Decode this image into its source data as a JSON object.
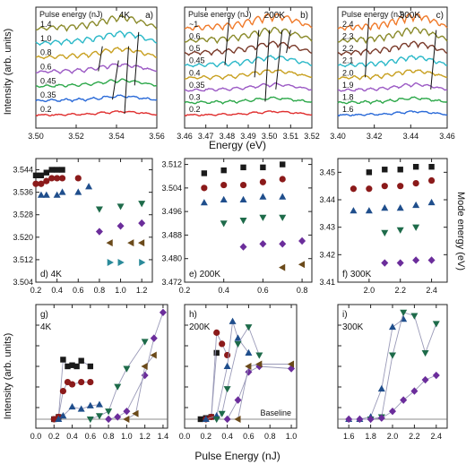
{
  "figure": {
    "row1_xlabel": "Energy (eV)",
    "row1_ylabel": "Intensity (arb. units)",
    "row2_ylabel": "Mode energy (eV)",
    "row3_xlabel": "Pulse Energy (nJ)",
    "row3_ylabel": "Intensity (arb. units)"
  },
  "chart_data": [
    {
      "id": "a",
      "type": "line",
      "tag": "4K",
      "letter": "a)",
      "legend_title": "Pulse energy (nJ)",
      "xlim": [
        3.5,
        3.56
      ],
      "xticks": [
        3.5,
        3.52,
        3.54,
        3.56
      ],
      "xticklabels": [
        "3.50",
        "3.52",
        "3.54",
        "3.56"
      ],
      "series": [
        {
          "name": "0.2",
          "color": "#e03030"
        },
        {
          "name": "0.35",
          "color": "#2a6ad8"
        },
        {
          "name": "0.45",
          "color": "#2da84a"
        },
        {
          "name": "0.6",
          "color": "#9b59c4"
        },
        {
          "name": "0.8",
          "color": "#c8a020"
        },
        {
          "name": "1.0",
          "color": "#2ab8c8"
        },
        {
          "name": "1.4",
          "color": "#8a8a2a"
        }
      ],
      "peak_lines": [
        [
          [
            3.544,
            0
          ],
          [
            3.546,
            4
          ]
        ],
        [
          [
            3.538,
            1
          ],
          [
            3.541,
            3
          ]
        ],
        [
          [
            3.531,
            3
          ],
          [
            3.533,
            4
          ]
        ],
        [
          [
            3.549,
            2
          ],
          [
            3.551,
            5
          ]
        ]
      ]
    },
    {
      "id": "b",
      "type": "line",
      "tag": "200K",
      "letter": "b)",
      "legend_title": "Pulse energy (nJ)",
      "xlim": [
        3.46,
        3.52
      ],
      "xticks": [
        3.46,
        3.47,
        3.48,
        3.49,
        3.5,
        3.51,
        3.52
      ],
      "xticklabels": [
        "3.46",
        "3.47",
        "3.48",
        "3.49",
        "3.50",
        "3.51",
        "3.52"
      ],
      "series": [
        {
          "name": "0.2",
          "color": "#e03030"
        },
        {
          "name": "0.3",
          "color": "#2da84a"
        },
        {
          "name": "0.35",
          "color": "#9b59c4"
        },
        {
          "name": "0.4",
          "color": "#c8a020"
        },
        {
          "name": "0.45",
          "color": "#2ab8c8"
        },
        {
          "name": "0.5",
          "color": "#7a3a2a"
        },
        {
          "name": "0.6",
          "color": "#8a8a2a"
        },
        {
          "name": "~1",
          "color": "#f07a2a"
        }
      ],
      "peak_lines": [
        [
          [
            3.479,
            4
          ],
          [
            3.481,
            7
          ]
        ],
        [
          [
            3.498,
            1
          ],
          [
            3.5,
            6
          ]
        ],
        [
          [
            3.503,
            2
          ],
          [
            3.506,
            6
          ]
        ],
        [
          [
            3.493,
            3
          ],
          [
            3.495,
            6
          ]
        ],
        [
          [
            3.508,
            5
          ],
          [
            3.51,
            6
          ]
        ]
      ]
    },
    {
      "id": "c",
      "type": "line",
      "tag": "300K",
      "letter": "c)",
      "legend_title": "Pulse energy (nJ)",
      "xlim": [
        3.4,
        3.46
      ],
      "xticks": [
        3.4,
        3.42,
        3.44,
        3.46
      ],
      "xticklabels": [
        "3.40",
        "3.42",
        "3.44",
        "3.46"
      ],
      "series": [
        {
          "name": "1.6",
          "color": "#2a6ad8"
        },
        {
          "name": "1.8",
          "color": "#2da84a"
        },
        {
          "name": "1.9",
          "color": "#9b59c4"
        },
        {
          "name": "2.0",
          "color": "#c8a020"
        },
        {
          "name": "2.1",
          "color": "#2ab8c8"
        },
        {
          "name": "2.2",
          "color": "#7a3a2a"
        },
        {
          "name": "2.3",
          "color": "#8a8a2a"
        },
        {
          "name": "2.4",
          "color": "#f07a2a"
        }
      ],
      "peak_lines": [
        [
          [
            3.415,
            3
          ],
          [
            3.417,
            7
          ]
        ],
        [
          [
            3.451,
            2
          ],
          [
            3.454,
            6
          ]
        ]
      ]
    },
    {
      "id": "d",
      "type": "scatter",
      "tag": "4K",
      "letter": "d)",
      "xlim": [
        0.2,
        1.3
      ],
      "ylim": [
        3.504,
        3.548
      ],
      "xticks": [
        0.2,
        0.4,
        0.6,
        0.8,
        1.0,
        1.2
      ],
      "xticklabels": [
        "0.2",
        "0.4",
        "0.6",
        "0.8",
        "1.0",
        "1.2"
      ],
      "yticks": [
        3.504,
        3.512,
        3.52,
        3.528,
        3.536,
        3.544
      ],
      "yticklabels": [
        "3.504",
        "3.512",
        "3.520",
        "3.528",
        "3.536",
        "3.544"
      ],
      "series": [
        {
          "marker": "square",
          "color": "#1a1a1a",
          "x": [
            0.2,
            0.25,
            0.3,
            0.35,
            0.4,
            0.45
          ],
          "y": [
            3.542,
            3.542,
            3.543,
            3.544,
            3.544,
            3.544
          ]
        },
        {
          "marker": "circle",
          "color": "#8b1a1a",
          "x": [
            0.2,
            0.25,
            0.3,
            0.35,
            0.4,
            0.45,
            0.6
          ],
          "y": [
            3.539,
            3.539,
            3.54,
            3.541,
            3.541,
            3.541,
            3.541
          ]
        },
        {
          "marker": "triangle-up",
          "color": "#1f4e8c",
          "x": [
            0.25,
            0.3,
            0.4,
            0.45,
            0.6,
            0.7
          ],
          "y": [
            3.535,
            3.535,
            3.535,
            3.536,
            3.536,
            3.538
          ]
        },
        {
          "marker": "triangle-down",
          "color": "#1e6b4a",
          "x": [
            0.8,
            1.0,
            1.2
          ],
          "y": [
            3.53,
            3.531,
            3.532
          ]
        },
        {
          "marker": "diamond",
          "color": "#6b2d9b",
          "x": [
            0.8,
            1.0,
            1.2
          ],
          "y": [
            3.522,
            3.524,
            3.525
          ]
        },
        {
          "marker": "triangle-left",
          "color": "#6b4a1a",
          "x": [
            0.9,
            1.1,
            1.2
          ],
          "y": [
            3.518,
            3.518,
            3.518
          ]
        },
        {
          "marker": "triangle-right",
          "color": "#2a8a9a",
          "x": [
            0.9,
            1.0,
            1.2
          ],
          "y": [
            3.511,
            3.511,
            3.511
          ]
        }
      ]
    },
    {
      "id": "e",
      "type": "scatter",
      "tag": "200K",
      "letter": "e)",
      "xlim": [
        0.2,
        0.85
      ],
      "ylim": [
        3.472,
        3.514
      ],
      "xticks": [
        0.2,
        0.4,
        0.6,
        0.8
      ],
      "xticklabels": [
        "0.2",
        "0.4",
        "0.6",
        "0.8"
      ],
      "yticks": [
        3.472,
        3.48,
        3.488,
        3.496,
        3.504,
        3.512
      ],
      "yticklabels": [
        "3.472",
        "3.480",
        "3.488",
        "3.496",
        "3.504",
        "3.512"
      ],
      "series": [
        {
          "marker": "square",
          "color": "#1a1a1a",
          "x": [
            0.3,
            0.4,
            0.5,
            0.6,
            0.7
          ],
          "y": [
            3.509,
            3.51,
            3.511,
            3.511,
            3.512
          ]
        },
        {
          "marker": "circle",
          "color": "#8b1a1a",
          "x": [
            0.3,
            0.4,
            0.5,
            0.6,
            0.7
          ],
          "y": [
            3.504,
            3.505,
            3.505,
            3.506,
            3.507
          ]
        },
        {
          "marker": "triangle-up",
          "color": "#1f4e8c",
          "x": [
            0.3,
            0.4,
            0.5,
            0.6,
            0.7
          ],
          "y": [
            3.499,
            3.5,
            3.5,
            3.501,
            3.501
          ]
        },
        {
          "marker": "triangle-down",
          "color": "#1e6b4a",
          "x": [
            0.4,
            0.5,
            0.6,
            0.7
          ],
          "y": [
            3.492,
            3.493,
            3.494,
            3.494
          ]
        },
        {
          "marker": "diamond",
          "color": "#6b2d9b",
          "x": [
            0.5,
            0.6,
            0.7,
            0.8
          ],
          "y": [
            3.484,
            3.485,
            3.485,
            3.486
          ]
        },
        {
          "marker": "triangle-left",
          "color": "#6b4a1a",
          "x": [
            0.7,
            0.8
          ],
          "y": [
            3.477,
            3.478
          ]
        }
      ]
    },
    {
      "id": "f",
      "type": "scatter",
      "tag": "300K",
      "letter": "f)",
      "xlim": [
        1.8,
        2.5
      ],
      "ylim": [
        3.41,
        3.455
      ],
      "xticks": [
        2.0,
        2.2,
        2.4
      ],
      "xticklabels": [
        "2.0",
        "2.2",
        "2.4"
      ],
      "yticks": [
        3.41,
        3.42,
        3.43,
        3.44,
        3.45
      ],
      "yticklabels": [
        "3.41",
        "3.42",
        "3.43",
        "3.44",
        "3.45"
      ],
      "series": [
        {
          "marker": "square",
          "color": "#1a1a1a",
          "x": [
            2.0,
            2.1,
            2.2,
            2.3,
            2.4
          ],
          "y": [
            3.45,
            3.451,
            3.451,
            3.452,
            3.452
          ]
        },
        {
          "marker": "circle",
          "color": "#8b1a1a",
          "x": [
            1.9,
            2.0,
            2.1,
            2.2,
            2.3,
            2.4
          ],
          "y": [
            3.444,
            3.444,
            3.445,
            3.445,
            3.446,
            3.447
          ]
        },
        {
          "marker": "triangle-up",
          "color": "#1f4e8c",
          "x": [
            1.9,
            2.0,
            2.1,
            2.2,
            2.3,
            2.4
          ],
          "y": [
            3.436,
            3.436,
            3.437,
            3.437,
            3.438,
            3.439
          ]
        },
        {
          "marker": "triangle-down",
          "color": "#1e6b4a",
          "x": [
            2.1,
            2.2,
            2.3
          ],
          "y": [
            3.428,
            3.429,
            3.43
          ]
        },
        {
          "marker": "diamond",
          "color": "#6b2d9b",
          "x": [
            2.1,
            2.2,
            2.3,
            2.4
          ],
          "y": [
            3.417,
            3.417,
            3.418,
            3.418
          ]
        }
      ]
    },
    {
      "id": "g",
      "type": "scatter",
      "tag": "4K",
      "letter": "g)",
      "xlim": [
        0.0,
        1.45
      ],
      "ylim": [
        -0.05,
        1.05
      ],
      "xticks": [
        0.0,
        0.2,
        0.4,
        0.6,
        0.8,
        1.0,
        1.2,
        1.4
      ],
      "xticklabels": [
        "0.0",
        "0.2",
        "0.4",
        "0.6",
        "0.8",
        "1.0",
        "1.2",
        "1.4"
      ],
      "baseline": 0.03,
      "series": [
        {
          "marker": "square",
          "color": "#1a1a1a",
          "x": [
            0.2,
            0.25,
            0.3,
            0.35,
            0.4,
            0.45,
            0.5,
            0.6
          ],
          "y": [
            0.03,
            0.05,
            0.56,
            0.5,
            0.51,
            0.5,
            0.55,
            0.5
          ]
        },
        {
          "marker": "circle",
          "color": "#8b1a1a",
          "x": [
            0.2,
            0.25,
            0.3,
            0.35,
            0.4,
            0.5,
            0.6
          ],
          "y": [
            0.03,
            0.05,
            0.28,
            0.36,
            0.34,
            0.36,
            0.36
          ]
        },
        {
          "marker": "triangle-up",
          "color": "#1f4e8c",
          "x": [
            0.25,
            0.3,
            0.4,
            0.5,
            0.6,
            0.7
          ],
          "y": [
            0.03,
            0.06,
            0.14,
            0.12,
            0.15,
            0.16
          ]
        },
        {
          "marker": "triangle-down",
          "color": "#1e6b4a",
          "x": [
            0.6,
            0.7,
            0.8,
            0.9,
            1.0,
            1.2
          ],
          "y": [
            0.03,
            0.06,
            0.1,
            0.32,
            0.48,
            0.72
          ]
        },
        {
          "marker": "diamond",
          "color": "#6b2d9b",
          "x": [
            0.8,
            0.9,
            1.0,
            1.2,
            1.3,
            1.4
          ],
          "y": [
            0.03,
            0.05,
            0.1,
            0.42,
            0.75,
            0.98
          ]
        },
        {
          "marker": "triangle-left",
          "color": "#6b4a1a",
          "x": [
            1.0,
            1.1,
            1.2,
            1.3
          ],
          "y": [
            0.03,
            0.08,
            0.5,
            0.6
          ]
        }
      ]
    },
    {
      "id": "h",
      "type": "scatter",
      "tag": "200K",
      "letter": "h)",
      "xlim": [
        0.0,
        1.05
      ],
      "ylim": [
        -0.05,
        1.05
      ],
      "xticks": [
        0.0,
        0.2,
        0.4,
        0.6,
        0.8,
        1.0
      ],
      "xticklabels": [
        "0.0",
        "0.2",
        "0.4",
        "0.6",
        "0.8",
        "1.0"
      ],
      "baseline": 0.03,
      "baseline_label": "Baseline",
      "series": [
        {
          "marker": "square",
          "color": "#1a1a1a",
          "x": [
            0.15,
            0.2,
            0.25,
            0.3
          ],
          "y": [
            0.03,
            0.04,
            0.05,
            0.62
          ]
        },
        {
          "marker": "circle",
          "color": "#8b1a1a",
          "x": [
            0.2,
            0.25,
            0.3,
            0.35,
            0.4
          ],
          "y": [
            0.03,
            0.05,
            0.8,
            0.7,
            0.6
          ]
        },
        {
          "marker": "triangle-up",
          "color": "#1f4e8c",
          "x": [
            0.2,
            0.3,
            0.4,
            0.45,
            0.5,
            0.6
          ],
          "y": [
            0.03,
            0.06,
            0.5,
            0.9,
            0.75,
            0.62
          ]
        },
        {
          "marker": "triangle-down",
          "color": "#1e6b4a",
          "x": [
            0.3,
            0.35,
            0.4,
            0.5,
            0.6,
            0.7
          ],
          "y": [
            0.03,
            0.08,
            0.3,
            0.7,
            0.85,
            0.6
          ]
        },
        {
          "marker": "diamond",
          "color": "#6b2d9b",
          "x": [
            0.4,
            0.5,
            0.6,
            0.7,
            1.0
          ],
          "y": [
            0.03,
            0.2,
            0.45,
            0.5,
            0.48
          ]
        },
        {
          "marker": "triangle-left",
          "color": "#6b4a1a",
          "x": [
            0.5,
            0.6,
            0.7,
            1.0
          ],
          "y": [
            0.03,
            0.5,
            0.52,
            0.52
          ]
        }
      ]
    },
    {
      "id": "i",
      "type": "scatter",
      "tag": "300K",
      "letter": "i)",
      "xlim": [
        1.5,
        2.5
      ],
      "ylim": [
        -0.05,
        1.05
      ],
      "xticks": [
        1.6,
        1.8,
        2.0,
        2.2,
        2.4
      ],
      "xticklabels": [
        "1.6",
        "1.8",
        "2.0",
        "2.2",
        "2.4"
      ],
      "baseline": 0.03,
      "series": [
        {
          "marker": "triangle-up",
          "color": "#1f4e8c",
          "x": [
            1.6,
            1.7,
            1.8,
            1.9,
            2.0,
            2.1
          ],
          "y": [
            0.03,
            0.03,
            0.05,
            0.3,
            0.85,
            0.92
          ]
        },
        {
          "marker": "triangle-down",
          "color": "#1e6b4a",
          "x": [
            1.8,
            1.9,
            2.0,
            2.1,
            2.2,
            2.3,
            2.4
          ],
          "y": [
            0.03,
            0.05,
            0.6,
            0.98,
            0.95,
            0.62,
            0.88
          ]
        },
        {
          "marker": "diamond",
          "color": "#6b2d9b",
          "x": [
            1.6,
            1.7,
            1.8,
            1.9,
            2.0,
            2.1,
            2.2,
            2.3,
            2.4
          ],
          "y": [
            0.03,
            0.03,
            0.03,
            0.04,
            0.1,
            0.2,
            0.28,
            0.38,
            0.42
          ]
        }
      ]
    }
  ]
}
